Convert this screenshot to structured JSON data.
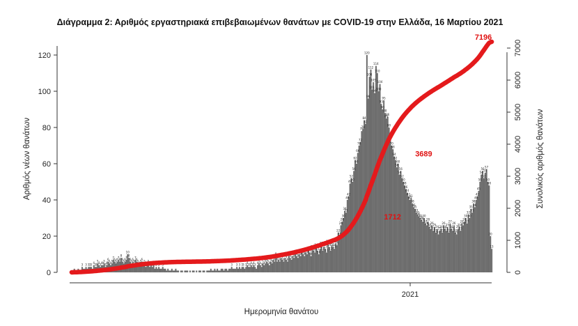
{
  "chart_data": {
    "type": "bar",
    "title": "Διάγραμμα 2: Αριθμός εργαστηριακά επιβεβαιωμένων θανάτων με COVID-19 στην Ελλάδα, 16 Μαρτίου 2021",
    "xlabel": "Ημερομηνία θανάτου",
    "ylabel": "Αριθμός νέων θανάτων",
    "y2label": "Συνολικός αριθμός θανάτων",
    "x_tick_labels": [
      "2021"
    ],
    "ylim": [
      0,
      125
    ],
    "y_ticks": [
      0,
      20,
      40,
      60,
      80,
      100,
      120
    ],
    "y2lim": [
      0,
      7500
    ],
    "y2_ticks": [
      0,
      1000,
      2000,
      3000,
      4000,
      5000,
      6000,
      7000
    ],
    "bar_color": "#6d6d6d",
    "line_color": "#e41a1c",
    "grid": false,
    "series": [
      {
        "kind": "bar",
        "x_start": "2020-03-12",
        "values": [
          1,
          1,
          2,
          1,
          1,
          2,
          1,
          1,
          3,
          2,
          2,
          3,
          2,
          3,
          3,
          3,
          2,
          4,
          3,
          3,
          5,
          4,
          3,
          4,
          4,
          5,
          3,
          4,
          6,
          5,
          4,
          5,
          7,
          6,
          5,
          6,
          7,
          6,
          8,
          6,
          5,
          6,
          7,
          10,
          8,
          6,
          5,
          6,
          5,
          7,
          6,
          5,
          4,
          5,
          6,
          4,
          5,
          3,
          4,
          5,
          3,
          4,
          3,
          4,
          2,
          3,
          2,
          3,
          2,
          2,
          3,
          2,
          2,
          1,
          2,
          1,
          1,
          2,
          1,
          1,
          2,
          1,
          1,
          0,
          1,
          1,
          0,
          1,
          1,
          1,
          0,
          1,
          0,
          1,
          1,
          0,
          1,
          0,
          1,
          1,
          0,
          1,
          1,
          0,
          1,
          1,
          1,
          2,
          1,
          1,
          2,
          1,
          2,
          1,
          1,
          2,
          2,
          1,
          2,
          2,
          1,
          2,
          2,
          3,
          2,
          2,
          2,
          3,
          2,
          3,
          2,
          3,
          3,
          2,
          3,
          4,
          3,
          3,
          4,
          3,
          4,
          3,
          2,
          4,
          5,
          4,
          3,
          5,
          4,
          5,
          6,
          5,
          4,
          6,
          5,
          7,
          6,
          9,
          6,
          7,
          6,
          8,
          7,
          6,
          8,
          7,
          6,
          9,
          8,
          7,
          9,
          8,
          10,
          9,
          8,
          10,
          9,
          11,
          10,
          9,
          11,
          10,
          12,
          11,
          9,
          13,
          12,
          11,
          14,
          12,
          10,
          13,
          15,
          12,
          14,
          13,
          11,
          16,
          14,
          12,
          15,
          14,
          13,
          16,
          15,
          22,
          20,
          26,
          28,
          30,
          34,
          33,
          40,
          42,
          49,
          52,
          50,
          56,
          62,
          60,
          66,
          70,
          72,
          78,
          79,
          84,
          82,
          120,
          96,
          108,
          112,
          101,
          105,
          99,
          114,
          110,
          100,
          104,
          93,
          90,
          95,
          88,
          85,
          86,
          80,
          74,
          70,
          68,
          64,
          62,
          58,
          60,
          54,
          56,
          52,
          50,
          48,
          46,
          44,
          42,
          40,
          41,
          38,
          36,
          35,
          33,
          32,
          31,
          30,
          29,
          28,
          30,
          27,
          26,
          28,
          25,
          24,
          26,
          23,
          25,
          22,
          24,
          21,
          23,
          24,
          22,
          26,
          24,
          23,
          25,
          22,
          27,
          24,
          23,
          26,
          22,
          21,
          24,
          25,
          23,
          27,
          26,
          28,
          30,
          27,
          32,
          30,
          35,
          33,
          38,
          36,
          40,
          42,
          45,
          50,
          54,
          56,
          52,
          55,
          57,
          50,
          48,
          20,
          13
        ],
        "value_labels_shown": [
          "3",
          "4",
          "5",
          "6",
          "7",
          "8",
          "9",
          "10",
          "11",
          "12",
          "13",
          "14",
          "15",
          "16",
          "20",
          "22",
          "26",
          "28",
          "30",
          "33",
          "38",
          "40",
          "41",
          "42",
          "44",
          "48",
          "50",
          "52",
          "53",
          "54",
          "56",
          "57",
          "62",
          "64",
          "66",
          "70",
          "74",
          "75",
          "78",
          "79",
          "80",
          "82",
          "84",
          "86",
          "88",
          "90",
          "93",
          "96",
          "98",
          "99",
          "100",
          "101",
          "104",
          "108",
          "110",
          "112",
          "114",
          "120"
        ]
      },
      {
        "kind": "line",
        "name": "cumulative",
        "point_labels": [
          {
            "date": "2020-11-18",
            "value": 1712,
            "label": "1712"
          },
          {
            "date": "2020-12-12",
            "value": 3689,
            "label": "3689"
          },
          {
            "date": "2021-03-16",
            "value": 7196,
            "label": "7196"
          }
        ]
      }
    ]
  }
}
